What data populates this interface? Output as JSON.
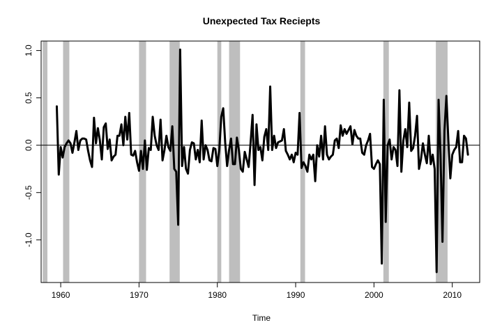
{
  "chart_data": {
    "type": "line",
    "title": "Unexpected Tax Reciepts",
    "xlabel": "Time",
    "ylabel": "",
    "xlim": [
      1957.5,
      2013.5
    ],
    "ylim": [
      -1.45,
      1.1
    ],
    "x_ticks": [
      1960,
      1970,
      1980,
      1990,
      2000,
      2010
    ],
    "x_tick_labels": [
      "1960",
      "1970",
      "1980",
      "1990",
      "2000",
      "2010"
    ],
    "y_ticks": [
      1.0,
      0.5,
      0.0,
      -0.5,
      -1.0
    ],
    "y_tick_labels": [
      "1.0",
      "0.5",
      "0.0",
      "-0.5",
      "-1.0"
    ],
    "zero_line": 0,
    "grid": false,
    "legend": "none",
    "colors": {
      "line": "#000000",
      "recession": "#bebebe",
      "frame": "#000000"
    },
    "recession_bands": [
      [
        1957.7,
        1958.3
      ],
      [
        1960.3,
        1961.1
      ],
      [
        1970.0,
        1970.9
      ],
      [
        1973.9,
        1975.2
      ],
      [
        1980.0,
        1980.5
      ],
      [
        1981.5,
        1982.9
      ],
      [
        1990.6,
        1991.2
      ],
      [
        2001.2,
        2001.9
      ],
      [
        2007.9,
        2009.4
      ]
    ],
    "series": [
      {
        "values": [
          [
            1959.5,
            0.41
          ],
          [
            1959.75,
            -0.31
          ],
          [
            1960.0,
            -0.02
          ],
          [
            1960.25,
            -0.13
          ],
          [
            1960.5,
            -0.02
          ],
          [
            1960.75,
            0.02
          ],
          [
            1961.0,
            0.05
          ],
          [
            1961.25,
            0.02
          ],
          [
            1961.5,
            -0.08
          ],
          [
            1961.75,
            0.03
          ],
          [
            1962.0,
            0.15
          ],
          [
            1962.25,
            -0.05
          ],
          [
            1962.5,
            0.05
          ],
          [
            1962.75,
            0.07
          ],
          [
            1963.0,
            0.07
          ],
          [
            1963.25,
            0.06
          ],
          [
            1963.5,
            -0.06
          ],
          [
            1963.75,
            -0.16
          ],
          [
            1964.0,
            -0.23
          ],
          [
            1964.25,
            0.29
          ],
          [
            1964.5,
            0.02
          ],
          [
            1964.75,
            0.18
          ],
          [
            1965.0,
            0.05
          ],
          [
            1965.25,
            -0.15
          ],
          [
            1965.5,
            0.19
          ],
          [
            1965.75,
            0.23
          ],
          [
            1966.0,
            -0.04
          ],
          [
            1966.25,
            0.06
          ],
          [
            1966.5,
            -0.16
          ],
          [
            1966.75,
            -0.12
          ],
          [
            1967.0,
            -0.1
          ],
          [
            1967.25,
            0.1
          ],
          [
            1967.5,
            0.1
          ],
          [
            1967.75,
            0.22
          ],
          [
            1968.0,
            0.0
          ],
          [
            1968.25,
            0.3
          ],
          [
            1968.5,
            0.06
          ],
          [
            1968.75,
            0.34
          ],
          [
            1969.0,
            -0.1
          ],
          [
            1969.25,
            -0.11
          ],
          [
            1969.5,
            -0.06
          ],
          [
            1969.75,
            -0.18
          ],
          [
            1970.0,
            -0.27
          ],
          [
            1970.25,
            -0.06
          ],
          [
            1970.5,
            -0.25
          ],
          [
            1970.75,
            0.05
          ],
          [
            1971.0,
            -0.26
          ],
          [
            1971.25,
            -0.03
          ],
          [
            1971.5,
            -0.05
          ],
          [
            1971.75,
            0.3
          ],
          [
            1972.0,
            0.1
          ],
          [
            1972.25,
            0.0
          ],
          [
            1972.5,
            -0.05
          ],
          [
            1972.75,
            0.27
          ],
          [
            1973.0,
            -0.16
          ],
          [
            1973.25,
            -0.05
          ],
          [
            1973.5,
            0.1
          ],
          [
            1973.75,
            -0.02
          ],
          [
            1974.0,
            -0.06
          ],
          [
            1974.25,
            0.2
          ],
          [
            1974.5,
            -0.25
          ],
          [
            1974.75,
            -0.28
          ],
          [
            1975.0,
            -0.84
          ],
          [
            1975.25,
            1.01
          ],
          [
            1975.5,
            -0.22
          ],
          [
            1975.75,
            -0.02
          ],
          [
            1976.0,
            -0.25
          ],
          [
            1976.25,
            -0.3
          ],
          [
            1976.5,
            -0.05
          ],
          [
            1976.75,
            0.03
          ],
          [
            1977.0,
            0.02
          ],
          [
            1977.25,
            -0.15
          ],
          [
            1977.5,
            -0.05
          ],
          [
            1977.75,
            -0.18
          ],
          [
            1978.0,
            0.26
          ],
          [
            1978.25,
            -0.15
          ],
          [
            1978.5,
            0.0
          ],
          [
            1978.75,
            -0.05
          ],
          [
            1979.0,
            -0.16
          ],
          [
            1979.25,
            -0.17
          ],
          [
            1979.5,
            -0.03
          ],
          [
            1979.75,
            -0.04
          ],
          [
            1980.0,
            -0.22
          ],
          [
            1980.25,
            -0.05
          ],
          [
            1980.5,
            0.3
          ],
          [
            1980.75,
            0.39
          ],
          [
            1981.0,
            0.03
          ],
          [
            1981.25,
            -0.22
          ],
          [
            1981.5,
            -0.05
          ],
          [
            1981.75,
            0.07
          ],
          [
            1982.0,
            -0.2
          ],
          [
            1982.25,
            -0.2
          ],
          [
            1982.5,
            0.08
          ],
          [
            1982.75,
            -0.05
          ],
          [
            1983.0,
            -0.25
          ],
          [
            1983.25,
            -0.28
          ],
          [
            1983.5,
            -0.07
          ],
          [
            1983.75,
            -0.15
          ],
          [
            1984.0,
            -0.23
          ],
          [
            1984.25,
            0.03
          ],
          [
            1984.5,
            0.32
          ],
          [
            1984.75,
            -0.42
          ],
          [
            1985.0,
            0.22
          ],
          [
            1985.25,
            -0.05
          ],
          [
            1985.5,
            -0.02
          ],
          [
            1985.75,
            -0.16
          ],
          [
            1986.0,
            0.09
          ],
          [
            1986.25,
            0.17
          ],
          [
            1986.5,
            -0.05
          ],
          [
            1986.75,
            0.62
          ],
          [
            1987.0,
            -0.05
          ],
          [
            1987.25,
            0.1
          ],
          [
            1987.5,
            -0.03
          ],
          [
            1987.75,
            0.03
          ],
          [
            1988.0,
            0.04
          ],
          [
            1988.25,
            0.05
          ],
          [
            1988.5,
            0.17
          ],
          [
            1988.75,
            -0.06
          ],
          [
            1989.0,
            -0.1
          ],
          [
            1989.25,
            -0.15
          ],
          [
            1989.5,
            -0.1
          ],
          [
            1989.75,
            -0.18
          ],
          [
            1990.0,
            -0.08
          ],
          [
            1990.25,
            -0.1
          ],
          [
            1990.5,
            0.34
          ],
          [
            1990.75,
            -0.24
          ],
          [
            1991.0,
            -0.18
          ],
          [
            1991.25,
            -0.22
          ],
          [
            1991.5,
            -0.28
          ],
          [
            1991.75,
            -0.1
          ],
          [
            1992.0,
            -0.15
          ],
          [
            1992.25,
            -0.1
          ],
          [
            1992.5,
            -0.38
          ],
          [
            1992.75,
            0.0
          ],
          [
            1993.0,
            -0.12
          ],
          [
            1993.25,
            0.1
          ],
          [
            1993.5,
            -0.15
          ],
          [
            1993.75,
            0.2
          ],
          [
            1994.0,
            -0.1
          ],
          [
            1994.25,
            -0.15
          ],
          [
            1994.5,
            -0.12
          ],
          [
            1994.75,
            -0.1
          ],
          [
            1995.0,
            0.05
          ],
          [
            1995.25,
            0.07
          ],
          [
            1995.5,
            -0.03
          ],
          [
            1995.75,
            0.21
          ],
          [
            1996.0,
            0.1
          ],
          [
            1996.25,
            0.17
          ],
          [
            1996.5,
            0.12
          ],
          [
            1996.75,
            0.16
          ],
          [
            1997.0,
            0.2
          ],
          [
            1997.25,
            0.01
          ],
          [
            1997.5,
            0.16
          ],
          [
            1997.75,
            0.1
          ],
          [
            1998.0,
            0.07
          ],
          [
            1998.25,
            0.07
          ],
          [
            1998.5,
            -0.08
          ],
          [
            1998.75,
            -0.1
          ],
          [
            1999.0,
            0.0
          ],
          [
            1999.25,
            0.05
          ],
          [
            1999.5,
            0.12
          ],
          [
            1999.75,
            -0.23
          ],
          [
            2000.0,
            -0.25
          ],
          [
            2000.25,
            -0.2
          ],
          [
            2000.5,
            -0.16
          ],
          [
            2000.75,
            -0.2
          ],
          [
            2001.0,
            -1.25
          ],
          [
            2001.25,
            0.48
          ],
          [
            2001.5,
            -0.81
          ],
          [
            2001.75,
            0.0
          ],
          [
            2002.0,
            0.06
          ],
          [
            2002.25,
            -0.15
          ],
          [
            2002.5,
            -0.02
          ],
          [
            2002.75,
            -0.05
          ],
          [
            2003.0,
            -0.22
          ],
          [
            2003.25,
            0.58
          ],
          [
            2003.5,
            -0.28
          ],
          [
            2003.75,
            0.05
          ],
          [
            2004.0,
            0.17
          ],
          [
            2004.25,
            -0.02
          ],
          [
            2004.5,
            0.45
          ],
          [
            2004.75,
            -0.06
          ],
          [
            2005.0,
            -0.03
          ],
          [
            2005.25,
            0.1
          ],
          [
            2005.5,
            0.31
          ],
          [
            2005.75,
            -0.25
          ],
          [
            2006.0,
            -0.15
          ],
          [
            2006.25,
            0.02
          ],
          [
            2006.5,
            -0.1
          ],
          [
            2006.75,
            -0.19
          ],
          [
            2007.0,
            0.1
          ],
          [
            2007.25,
            -0.2
          ],
          [
            2007.5,
            -0.1
          ],
          [
            2007.75,
            -0.25
          ],
          [
            2008.0,
            -1.34
          ],
          [
            2008.25,
            0.48
          ],
          [
            2008.5,
            -0.1
          ],
          [
            2008.75,
            -1.02
          ],
          [
            2009.0,
            0.15
          ],
          [
            2009.25,
            0.52
          ],
          [
            2009.5,
            0.05
          ],
          [
            2009.75,
            -0.35
          ],
          [
            2010.0,
            -0.1
          ],
          [
            2010.25,
            -0.05
          ],
          [
            2010.5,
            -0.02
          ],
          [
            2010.75,
            0.15
          ],
          [
            2011.0,
            -0.18
          ],
          [
            2011.25,
            -0.18
          ],
          [
            2011.5,
            0.1
          ],
          [
            2011.75,
            0.07
          ],
          [
            2012.0,
            -0.1
          ]
        ]
      }
    ]
  }
}
